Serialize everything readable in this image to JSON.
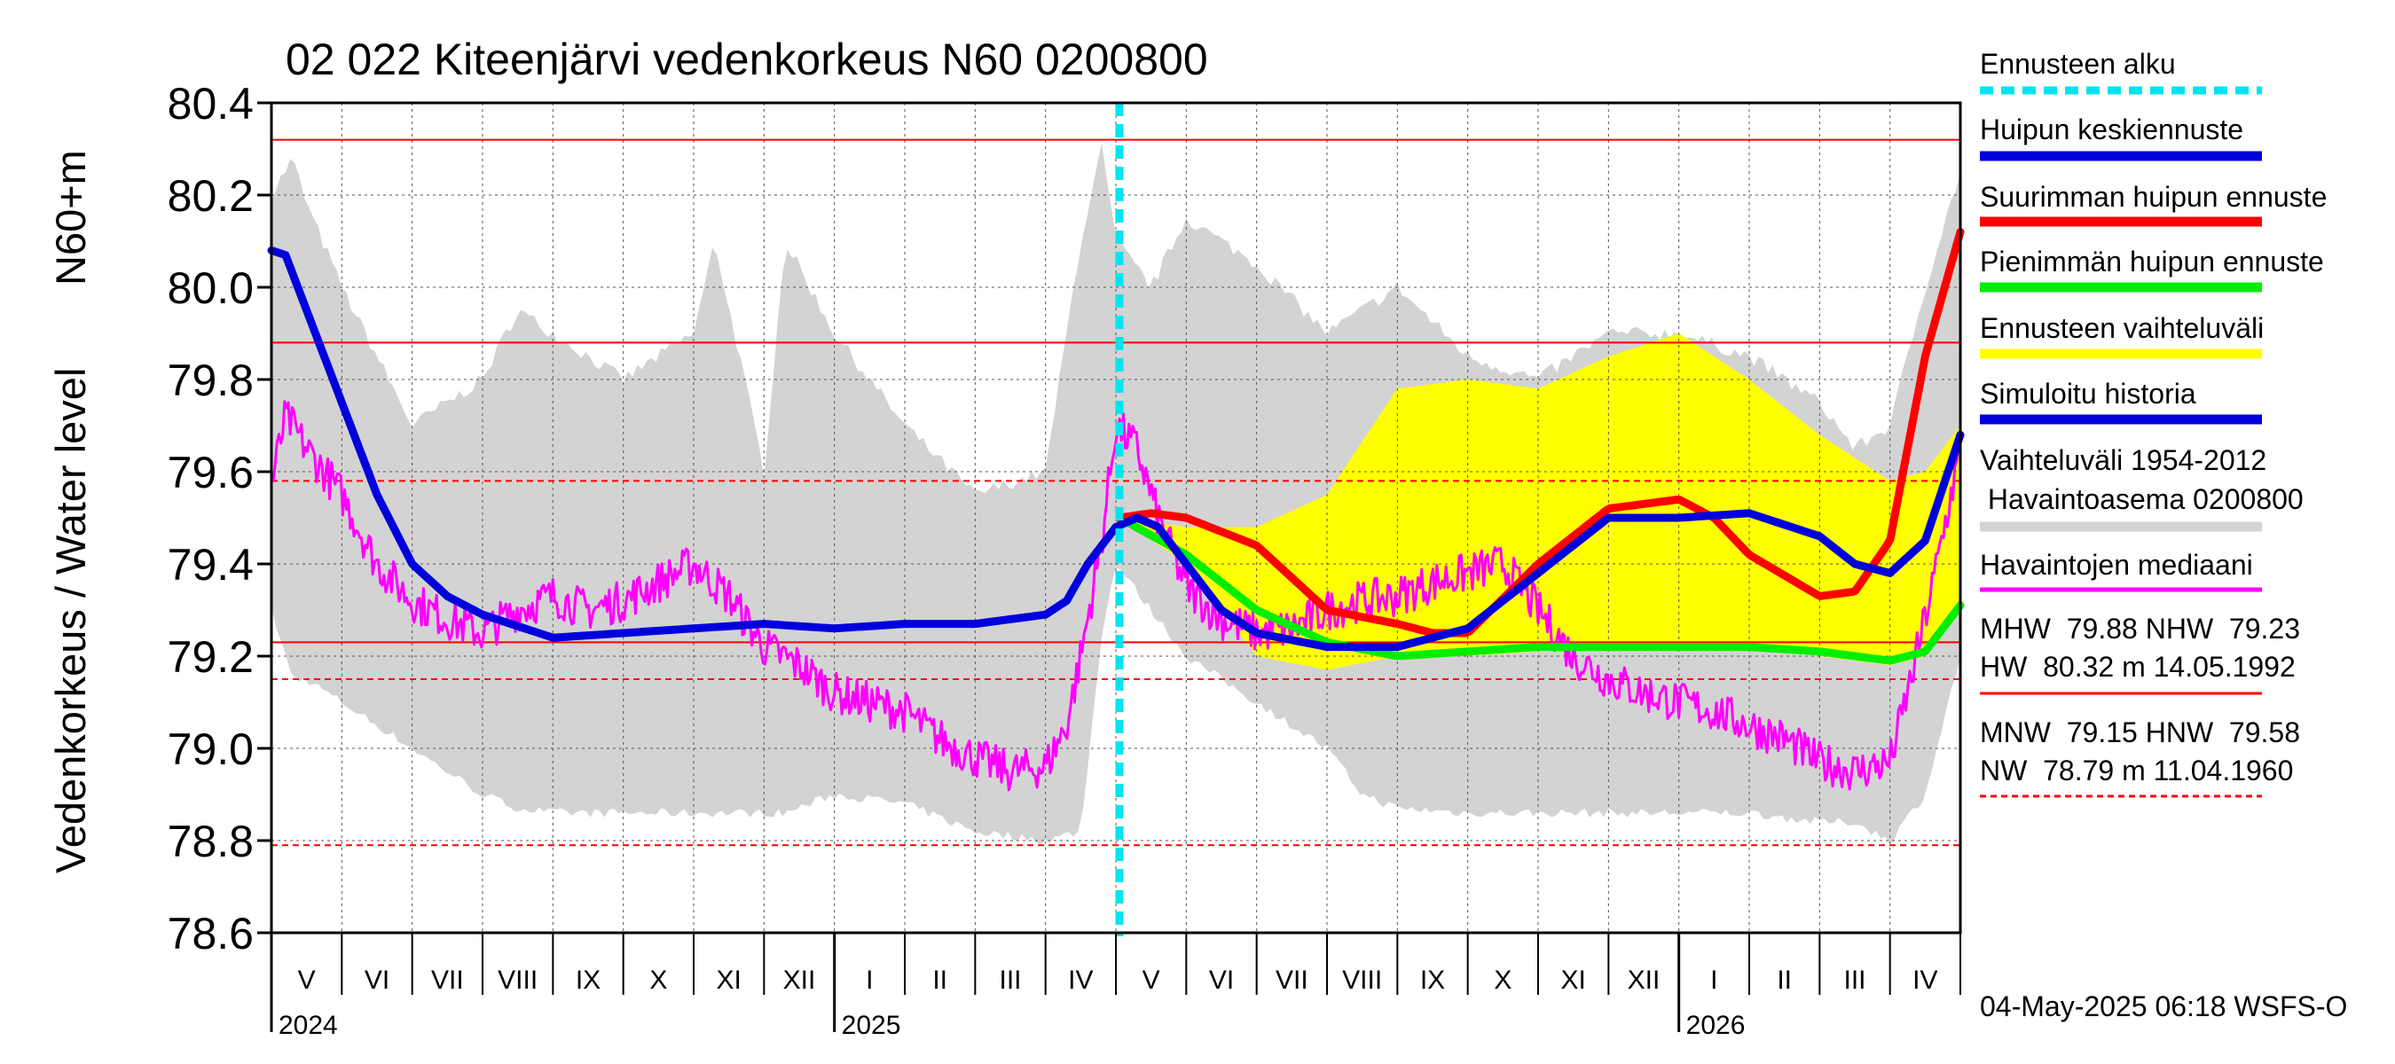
{
  "chart_data": {
    "type": "line",
    "title": "02 022 Kiteenjärvi vedenkorkeus N60 0200800",
    "ylabel": "Vedenkorkeus / Water level",
    "yunit": "N60+m",
    "ylim": [
      78.6,
      80.4
    ],
    "yticks": [
      78.6,
      78.8,
      79.0,
      79.2,
      79.4,
      79.6,
      79.8,
      80.0,
      80.2,
      80.4
    ],
    "ytick_labels": [
      "78.6",
      "78.8",
      "79.0",
      "79.2",
      "79.4",
      "79.6",
      "79.8",
      "80.0",
      "80.2",
      "80.4"
    ],
    "x_range_months": [
      0,
      24
    ],
    "months": [
      "V",
      "VI",
      "VII",
      "VIII",
      "IX",
      "X",
      "XI",
      "XII",
      "I",
      "II",
      "III",
      "IV",
      "V",
      "VI",
      "VII",
      "VIII",
      "IX",
      "X",
      "XI",
      "XII",
      "I",
      "II",
      "III",
      "IV"
    ],
    "years": [
      {
        "label": "2024",
        "at": 0
      },
      {
        "label": "2025",
        "at": 8
      },
      {
        "label": "2026",
        "at": 20
      }
    ],
    "forecast_start": 12.05,
    "reference_lines": [
      {
        "name": "HW",
        "value": 80.32,
        "style": "solid"
      },
      {
        "name": "MHW",
        "value": 79.88,
        "style": "solid"
      },
      {
        "name": "HNW",
        "value": 79.58,
        "style": "dashed"
      },
      {
        "name": "NHW",
        "value": 79.23,
        "style": "solid"
      },
      {
        "name": "MNW",
        "value": 79.15,
        "style": "dashed"
      },
      {
        "name": "NW",
        "value": 78.79,
        "style": "dashed"
      }
    ],
    "series": [
      {
        "name": "Vaihteluväli 1954-2012 Havaintoasema 0200800",
        "kind": "band",
        "color": "#d3d3d3",
        "x": [
          0,
          0.3,
          0.5,
          1,
          2,
          3,
          3.5,
          4,
          5,
          6,
          6.3,
          7,
          7.3,
          8,
          9,
          10,
          11,
          11.5,
          11.8,
          12,
          12.5,
          13,
          14,
          15,
          15.5,
          16,
          17,
          18,
          19,
          20,
          21,
          22,
          22.5,
          23,
          23.5,
          24
        ],
        "upper": [
          80.2,
          80.28,
          80.18,
          80.0,
          79.7,
          79.8,
          79.95,
          79.9,
          79.8,
          79.9,
          80.1,
          79.6,
          80.1,
          79.9,
          79.7,
          79.55,
          79.6,
          80.1,
          80.3,
          80.1,
          80.0,
          80.15,
          80.05,
          79.9,
          79.95,
          80.0,
          79.85,
          79.8,
          79.9,
          79.9,
          79.85,
          79.75,
          79.65,
          79.7,
          80.0,
          80.25
        ],
        "lower": [
          79.3,
          79.15,
          79.15,
          79.1,
          79.0,
          78.9,
          78.87,
          78.86,
          78.86,
          78.86,
          78.86,
          78.86,
          78.86,
          78.9,
          78.88,
          78.82,
          78.8,
          78.82,
          79.25,
          79.4,
          79.3,
          79.2,
          79.1,
          79.0,
          78.9,
          78.87,
          78.86,
          78.86,
          78.86,
          78.86,
          78.86,
          78.84,
          78.84,
          78.8,
          78.9,
          79.2
        ]
      },
      {
        "name": "Ennusteen vaihteluväli",
        "kind": "band",
        "color": "#ffff00",
        "x": [
          12.05,
          13,
          14,
          15,
          16,
          17,
          18,
          19,
          20,
          21,
          22,
          23,
          23.5,
          24
        ],
        "upper": [
          79.5,
          79.48,
          79.48,
          79.55,
          79.78,
          79.8,
          79.78,
          79.85,
          79.9,
          79.8,
          79.68,
          79.58,
          79.6,
          79.7
        ],
        "lower": [
          79.5,
          79.4,
          79.2,
          79.17,
          79.2,
          79.2,
          79.21,
          79.22,
          79.22,
          79.22,
          79.2,
          79.18,
          79.2,
          79.3
        ]
      },
      {
        "name": "Havaintojen mediaani",
        "kind": "noisy",
        "color": "#ff00ff",
        "x": [
          0,
          0.2,
          0.5,
          1,
          1.5,
          2,
          2.5,
          3,
          3.5,
          4,
          4.5,
          5,
          5.5,
          6,
          6.5,
          7,
          7.5,
          8,
          8.5,
          9,
          9.5,
          10,
          10.5,
          11,
          11.3,
          11.5,
          11.8,
          12,
          12.3,
          12.6,
          13,
          13.5,
          14,
          14.5,
          15,
          15.5,
          16,
          16.5,
          17,
          17.5,
          18,
          18.5,
          19,
          19.5,
          20,
          20.5,
          21,
          21.5,
          22,
          22.5,
          23,
          23.3,
          23.6,
          24
        ],
        "y": [
          79.57,
          79.72,
          79.65,
          79.55,
          79.4,
          79.32,
          79.28,
          79.25,
          79.3,
          79.33,
          79.3,
          79.32,
          79.36,
          79.4,
          79.33,
          79.22,
          79.18,
          79.12,
          79.1,
          79.08,
          79.02,
          78.98,
          78.95,
          78.96,
          79.05,
          79.2,
          79.45,
          79.7,
          79.65,
          79.5,
          79.35,
          79.28,
          79.25,
          79.26,
          79.3,
          79.32,
          79.33,
          79.36,
          79.38,
          79.4,
          79.3,
          79.2,
          79.15,
          79.12,
          79.1,
          79.08,
          79.05,
          79.02,
          78.97,
          78.95,
          78.97,
          79.15,
          79.35,
          79.65
        ]
      },
      {
        "name": "Pienimmän huipun ennuste",
        "kind": "line",
        "color": "#00ee00",
        "x": [
          12.05,
          13,
          14,
          15,
          16,
          17,
          18,
          19,
          20,
          21,
          22,
          22.5,
          23,
          23.5,
          24
        ],
        "y": [
          79.5,
          79.42,
          79.3,
          79.23,
          79.2,
          79.21,
          79.22,
          79.22,
          79.22,
          79.22,
          79.21,
          79.2,
          79.19,
          79.21,
          79.31
        ]
      },
      {
        "name": "Suurimman huipun ennuste",
        "kind": "line",
        "color": "#ff0000",
        "x": [
          12.05,
          12.5,
          13,
          14,
          15,
          16,
          16.5,
          17,
          18,
          19,
          20,
          20.5,
          21,
          22,
          22.5,
          23,
          23.5,
          24
        ],
        "y": [
          79.5,
          79.51,
          79.5,
          79.44,
          79.3,
          79.27,
          79.25,
          79.25,
          79.4,
          79.52,
          79.54,
          79.5,
          79.42,
          79.33,
          79.34,
          79.45,
          79.85,
          80.12
        ]
      },
      {
        "name": "Simuloitu historia / Huipun keskiennuste",
        "kind": "line",
        "color": "#0000dd",
        "x": [
          0,
          0.2,
          0.5,
          1,
          1.5,
          2,
          2.5,
          3,
          4,
          5,
          6,
          7,
          8,
          9,
          10,
          11,
          11.3,
          11.6,
          12,
          12.3,
          12.6,
          13,
          13.5,
          14,
          15,
          16,
          17,
          18,
          19,
          20,
          21,
          22,
          22.5,
          23,
          23.5,
          24
        ],
        "y": [
          80.08,
          80.07,
          79.95,
          79.75,
          79.55,
          79.4,
          79.33,
          79.29,
          79.24,
          79.25,
          79.26,
          79.27,
          79.26,
          79.27,
          79.27,
          79.29,
          79.32,
          79.4,
          79.48,
          79.5,
          79.48,
          79.4,
          79.3,
          79.25,
          79.22,
          79.22,
          79.26,
          79.38,
          79.5,
          79.5,
          79.51,
          79.46,
          79.4,
          79.38,
          79.45,
          79.68
        ]
      }
    ]
  },
  "legend": {
    "forecast_start": "Ennusteen alku",
    "mean_peak": "Huipun keskiennuste",
    "max_peak": "Suurimman huipun ennuste",
    "min_peak": "Pienimmän huipun ennuste",
    "forecast_range": "Ennusteen vaihteluväli",
    "simulated": "Simuloitu historia",
    "hist_range_1": "Vaihteluväli 1954-2012",
    "hist_range_2": " Havaintoasema 0200800",
    "median": "Havaintojen mediaani"
  },
  "stats": {
    "row1": "MHW  79.88 NHW  79.23",
    "row2": "HW  80.32 m 14.05.1992",
    "row3": "MNW  79.15 HNW  79.58",
    "row4": "NW  78.79 m 11.04.1960"
  },
  "footer": "04-May-2025 06:18 WSFS-O",
  "colors": {
    "blue": "#0000dd",
    "red": "#ff0000",
    "green": "#00ee00",
    "yellow": "#ffff00",
    "gray": "#d3d3d3",
    "magenta": "#ff00ff",
    "cyan": "#00e5ee"
  }
}
